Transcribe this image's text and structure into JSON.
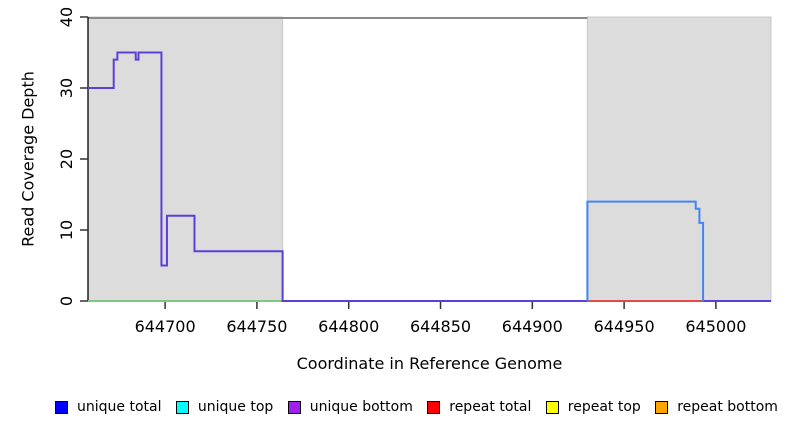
{
  "chart_data": {
    "type": "line",
    "subtype": "step-coverage",
    "title": "",
    "xlabel": "Coordinate in Reference Genome",
    "ylabel": "Read Coverage Depth",
    "xlim": [
      644658,
      645030
    ],
    "ylim": [
      0,
      40
    ],
    "x_ticks": [
      644700,
      644750,
      644800,
      644850,
      644900,
      644950,
      645000
    ],
    "y_ticks": [
      0,
      10,
      20,
      30,
      40
    ],
    "grid": false,
    "legend_position": "bottom",
    "colors": {
      "shade": "#dcdcdc",
      "shade_border": "#c9c9c9",
      "top_rule": "#8a8a8a",
      "axis": "#000000"
    },
    "shaded_regions": [
      {
        "from": 644658,
        "to": 644764
      },
      {
        "from": 644930,
        "to": 645030
      }
    ],
    "top_rule": {
      "y": 40,
      "from": 644658,
      "to": 644930
    },
    "series": [
      {
        "id": "zero-coverage-left-green",
        "name": "zero baseline (left shaded block)",
        "color": "#80c883",
        "points": [
          [
            644658,
            0
          ],
          [
            644764,
            0
          ]
        ]
      },
      {
        "id": "unique-coverage-main",
        "name": "unique coverage (purple-blue)",
        "color": "#5c3fd9",
        "points": [
          [
            644658,
            30
          ],
          [
            644672,
            30
          ],
          [
            644672,
            34
          ],
          [
            644674,
            34
          ],
          [
            644674,
            35
          ],
          [
            644684,
            35
          ],
          [
            644684,
            34
          ],
          [
            644685.5,
            34
          ],
          [
            644685.5,
            35
          ],
          [
            644698,
            35
          ],
          [
            644698,
            5
          ],
          [
            644701,
            5
          ],
          [
            644701,
            12
          ],
          [
            644716,
            12
          ],
          [
            644716,
            7
          ],
          [
            644764,
            7
          ],
          [
            644764,
            0
          ],
          [
            645030,
            0
          ]
        ]
      },
      {
        "id": "repeat-zero-right-red",
        "name": "repeat baseline (right shaded block)",
        "color": "#e34a50",
        "points": [
          [
            644930,
            0
          ],
          [
            644993,
            0
          ]
        ]
      },
      {
        "id": "unique-coverage-right-blue",
        "name": "unique coverage right block (blue)",
        "color": "#4187f0",
        "points": [
          [
            644930,
            0
          ],
          [
            644930,
            14
          ],
          [
            644989,
            14
          ],
          [
            644989,
            13
          ],
          [
            644991,
            13
          ],
          [
            644991,
            11
          ],
          [
            644993,
            11
          ],
          [
            644993,
            0
          ]
        ]
      }
    ],
    "legend": [
      {
        "label": "unique total",
        "color": "#0000ff"
      },
      {
        "label": "unique top",
        "color": "#00ffff"
      },
      {
        "label": "unique bottom",
        "color": "#a020f0"
      },
      {
        "label": "repeat total",
        "color": "#ff0000"
      },
      {
        "label": "repeat top",
        "color": "#ffff00"
      },
      {
        "label": "repeat bottom",
        "color": "#ffa500"
      }
    ]
  }
}
